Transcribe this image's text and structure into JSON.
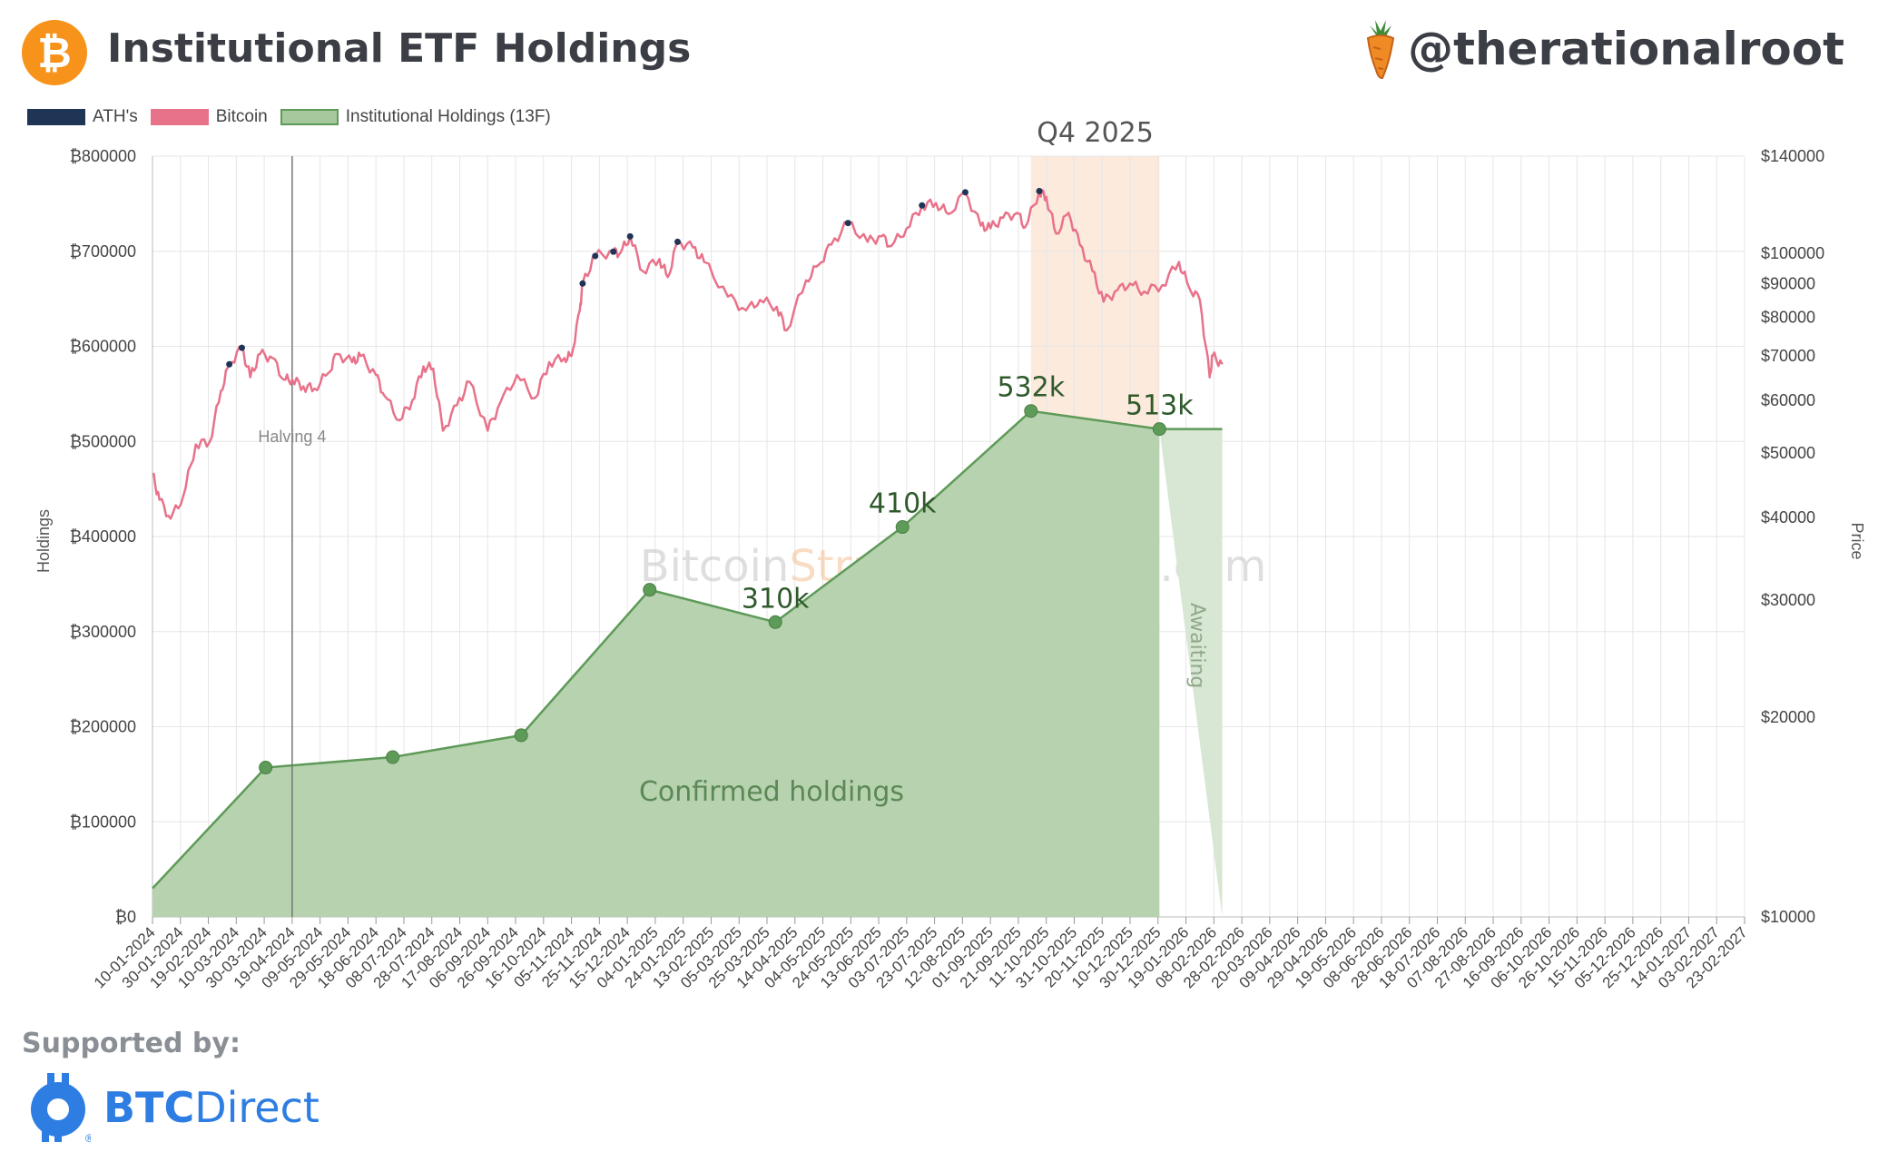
{
  "header": {
    "title": "Institutional ETF Holdings",
    "handle": "@therationalroot",
    "btc_symbol": "₿"
  },
  "legend": [
    {
      "label": "ATH's",
      "color": "#1f3556"
    },
    {
      "label": "Bitcoin",
      "color": "#e8728a"
    },
    {
      "label": "Institutional Holdings (13F)",
      "color": "#a5c89d"
    }
  ],
  "footer": {
    "supported_by": "Supported by:",
    "sponsor_bold": "BTC",
    "sponsor_rest": "Direct",
    "sponsor_mark": "®"
  },
  "chart_data": {
    "type": "area",
    "title": "Institutional ETF Holdings",
    "ylabel_left": "Holdings",
    "ylabel_right": "Price",
    "y_left_ticks": [
      "₿800000",
      "₿700000",
      "₿600000",
      "₿500000",
      "₿400000",
      "₿300000",
      "₿200000",
      "₿100000",
      "₿0"
    ],
    "y_left_values": [
      800000,
      700000,
      600000,
      500000,
      400000,
      300000,
      200000,
      100000,
      0
    ],
    "ylim_left": [
      0,
      800000
    ],
    "y_right_ticks": [
      "$140000",
      "$100000",
      "$90000",
      "$80000",
      "$70000",
      "$60000",
      "$50000",
      "$40000",
      "$30000",
      "$20000",
      "$10000"
    ],
    "y_right_values": [
      140000,
      100000,
      90000,
      80000,
      70000,
      60000,
      50000,
      40000,
      30000,
      20000,
      10000
    ],
    "y_right_scale": "log",
    "ylim_right": [
      10000,
      140000
    ],
    "x_tick_labels": [
      "10-01-2024",
      "30-01-2024",
      "19-02-2024",
      "10-03-2024",
      "30-03-2024",
      "19-04-2024",
      "09-05-2024",
      "29-05-2024",
      "18-06-2024",
      "08-07-2024",
      "28-07-2024",
      "17-08-2024",
      "06-09-2024",
      "26-09-2024",
      "16-10-2024",
      "05-11-2024",
      "25-11-2024",
      "15-12-2024",
      "04-01-2025",
      "24-01-2025",
      "13-02-2025",
      "05-03-2025",
      "25-03-2025",
      "14-04-2025",
      "04-05-2025",
      "24-05-2025",
      "13-06-2025",
      "03-07-2025",
      "23-07-2025",
      "12-08-2025",
      "01-09-2025",
      "21-09-2025",
      "11-10-2025",
      "31-10-2025",
      "20-11-2025",
      "10-12-2025",
      "30-12-2025",
      "19-01-2026",
      "08-02-2026",
      "28-02-2026",
      "20-03-2026",
      "09-04-2026",
      "29-04-2026",
      "19-05-2026",
      "08-06-2026",
      "28-06-2026",
      "18-07-2026",
      "07-08-2026",
      "27-08-2026",
      "16-09-2026",
      "06-10-2026",
      "26-10-2026",
      "15-11-2026",
      "05-12-2026",
      "25-12-2026",
      "14-01-2027",
      "03-02-2027",
      "23-02-2027"
    ],
    "holdings": {
      "name": "Institutional Holdings (13F)",
      "dates": [
        "2024-01-10",
        "2024-03-31",
        "2024-06-30",
        "2024-09-30",
        "2024-12-31",
        "2025-03-31",
        "2025-06-30",
        "2025-09-30",
        "2025-12-31"
      ],
      "values": [
        30000,
        157000,
        168000,
        191000,
        344000,
        310000,
        410000,
        532000,
        513000
      ],
      "point_labels": [
        {
          "index": 5,
          "text": "310k"
        },
        {
          "index": 6,
          "text": "410k"
        },
        {
          "index": 7,
          "text": "532k"
        },
        {
          "index": 8,
          "text": "513k"
        }
      ],
      "projection_end_date": "2026-02-14",
      "projection_value": 513000
    },
    "bitcoin": {
      "name": "Bitcoin",
      "dates": [
        "2024-01-10",
        "2024-01-15",
        "2024-01-23",
        "2024-02-01",
        "2024-02-10",
        "2024-02-20",
        "2024-02-28",
        "2024-03-05",
        "2024-03-14",
        "2024-03-20",
        "2024-03-27",
        "2024-04-05",
        "2024-04-13",
        "2024-04-19",
        "2024-04-27",
        "2024-05-05",
        "2024-05-15",
        "2024-05-21",
        "2024-06-01",
        "2024-06-07",
        "2024-06-18",
        "2024-06-24",
        "2024-07-05",
        "2024-07-14",
        "2024-07-22",
        "2024-07-29",
        "2024-08-05",
        "2024-08-15",
        "2024-08-24",
        "2024-09-06",
        "2024-09-15",
        "2024-09-27",
        "2024-10-10",
        "2024-10-20",
        "2024-10-31",
        "2024-11-05",
        "2024-11-11",
        "2024-11-13",
        "2024-11-22",
        "2024-12-05",
        "2024-12-10",
        "2024-12-17",
        "2024-12-26",
        "2025-01-07",
        "2025-01-13",
        "2025-01-20",
        "2025-01-31",
        "2025-02-08",
        "2025-02-25",
        "2025-03-10",
        "2025-03-20",
        "2025-04-01",
        "2025-04-08",
        "2025-04-22",
        "2025-05-01",
        "2025-05-10",
        "2025-05-22",
        "2025-06-05",
        "2025-06-15",
        "2025-06-22",
        "2025-07-03",
        "2025-07-14",
        "2025-07-24",
        "2025-08-02",
        "2025-08-14",
        "2025-08-25",
        "2025-09-01",
        "2025-09-10",
        "2025-09-20",
        "2025-09-26",
        "2025-10-06",
        "2025-10-11",
        "2025-10-18",
        "2025-10-27",
        "2025-11-04",
        "2025-11-13",
        "2025-11-21",
        "2025-12-01",
        "2025-12-10",
        "2025-12-20",
        "2026-01-02",
        "2026-01-14",
        "2026-01-21",
        "2026-01-29",
        "2026-02-05",
        "2026-02-07",
        "2026-02-14"
      ],
      "values": [
        46500,
        42500,
        39800,
        43000,
        51500,
        52000,
        62000,
        68000,
        72000,
        65000,
        70500,
        69500,
        64500,
        64500,
        63000,
        62500,
        66000,
        70500,
        68500,
        70000,
        65500,
        61000,
        56000,
        60000,
        67500,
        67000,
        54000,
        59000,
        64000,
        54000,
        59500,
        65500,
        60500,
        68500,
        69500,
        70000,
        82000,
        90000,
        99000,
        100500,
        100000,
        106000,
        94000,
        98000,
        92000,
        104000,
        102000,
        97000,
        86000,
        82000,
        85000,
        83000,
        76500,
        91000,
        96000,
        103000,
        111000,
        104000,
        106000,
        102500,
        109000,
        118000,
        119000,
        114500,
        123500,
        110000,
        109000,
        113000,
        115000,
        109500,
        124000,
        121500,
        107000,
        115000,
        103000,
        94000,
        84500,
        88000,
        90000,
        87500,
        89500,
        97000,
        89000,
        85000,
        65000,
        70000,
        68000
      ]
    },
    "ath_markers": [
      "2024-03-05",
      "2024-03-14",
      "2024-11-13",
      "2024-11-22",
      "2024-12-05",
      "2024-12-17",
      "2025-01-20",
      "2025-05-22",
      "2025-07-14",
      "2025-08-14",
      "2025-10-06"
    ],
    "annotations": {
      "halving": {
        "date": "2024-04-19",
        "label": "Halving 4"
      },
      "q4_band": {
        "start": "2025-09-30",
        "end": "2025-12-31",
        "label": "Q4 2025"
      },
      "confirmed": "Confirmed holdings",
      "awaiting": "Awaiting",
      "watermark_a": "Bitcoin",
      "watermark_b": "Strategy",
      "watermark_c": "Platform.com"
    }
  }
}
